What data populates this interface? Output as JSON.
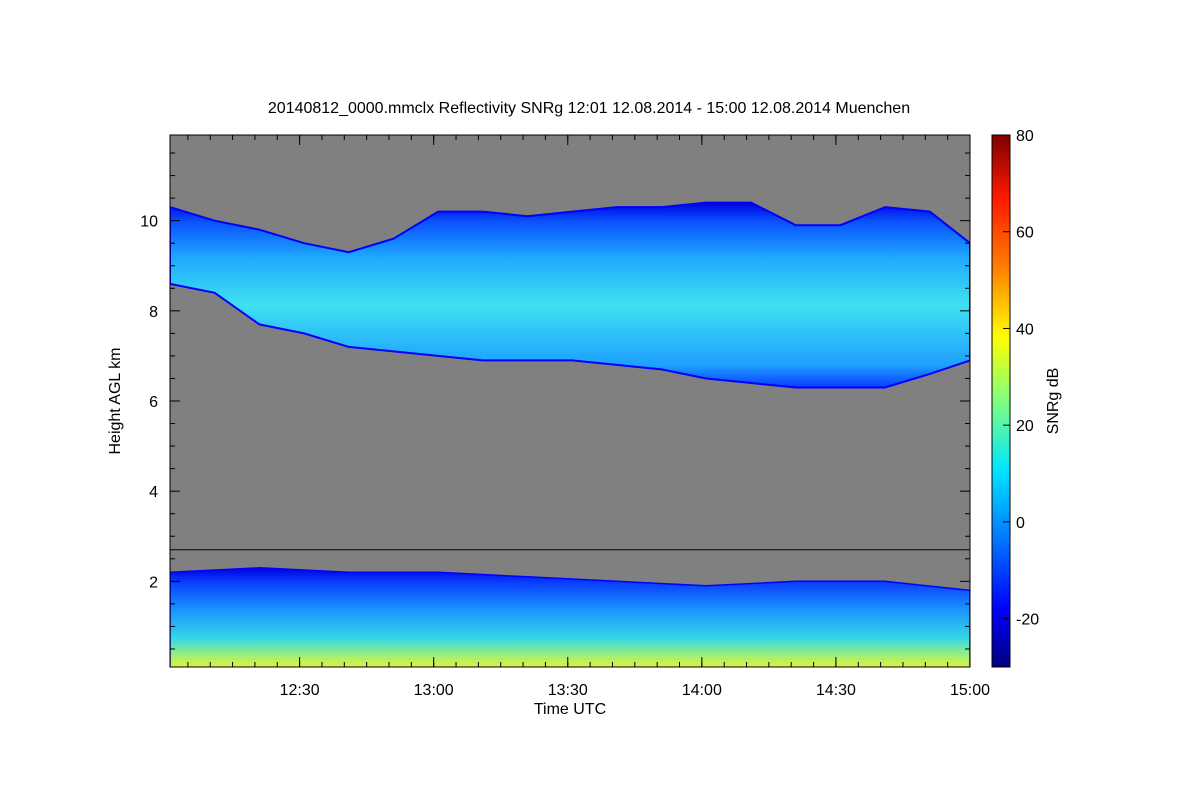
{
  "chart_data": {
    "type": "heatmap",
    "title": "20140812_0000.mmclx Reflectivity SNRg   12:01 12.08.2014 - 15:00 12.08.2014 Muenchen",
    "xlabel": "Time UTC",
    "ylabel": "Height AGL km",
    "x_range": [
      "12:01",
      "15:00"
    ],
    "x_ticks": [
      "12:30",
      "13:00",
      "13:30",
      "14:00",
      "14:30",
      "15:00"
    ],
    "ylim": [
      0.1,
      11.9
    ],
    "y_ticks": [
      2,
      4,
      6,
      8,
      10
    ],
    "colorbar": {
      "label": "SNRg dB",
      "range": [
        -30,
        80
      ],
      "ticks": [
        -20,
        0,
        20,
        40,
        60,
        80
      ],
      "colormap": "jet"
    },
    "background_color": "#808080",
    "cirrus_layer": {
      "description_values_km": {
        "time_minutes": [
          0,
          10,
          20,
          30,
          40,
          50,
          60,
          70,
          80,
          90,
          100,
          110,
          120,
          130,
          140,
          150,
          160,
          170,
          179
        ],
        "base": [
          8.6,
          8.4,
          7.7,
          7.5,
          7.2,
          7.1,
          7.0,
          6.9,
          6.9,
          6.9,
          6.8,
          6.7,
          6.5,
          6.4,
          6.3,
          6.3,
          6.3,
          6.6,
          6.9
        ],
        "top": [
          10.3,
          10.0,
          9.8,
          9.5,
          9.3,
          9.6,
          10.2,
          10.2,
          10.1,
          10.2,
          10.3,
          10.3,
          10.4,
          10.4,
          9.9,
          9.9,
          10.3,
          10.2,
          9.5
        ]
      }
    },
    "boundary_layer": {
      "description_values_km": {
        "time_minutes": [
          0,
          20,
          40,
          60,
          80,
          100,
          120,
          140,
          160,
          179
        ],
        "top": [
          2.2,
          2.3,
          2.2,
          2.2,
          2.1,
          2.0,
          1.9,
          2.0,
          2.0,
          1.8
        ]
      }
    },
    "horizontal_line_km": 2.7
  }
}
